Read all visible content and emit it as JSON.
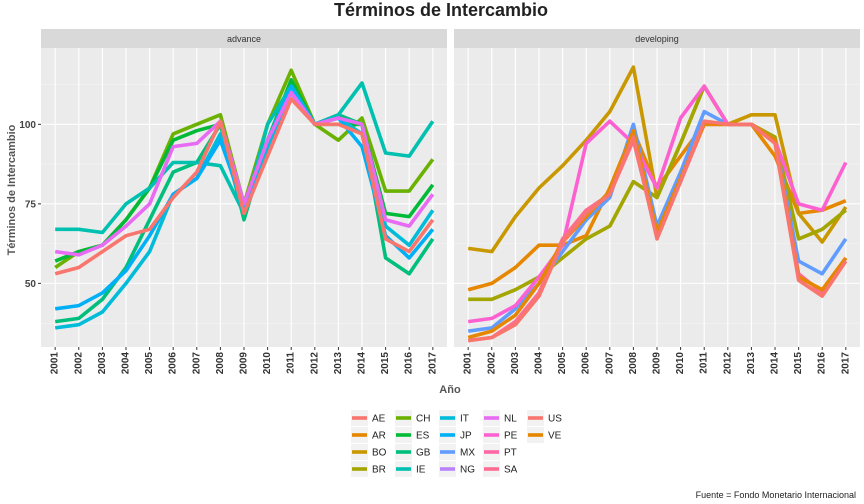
{
  "chart_data": {
    "type": "line",
    "title": "Términos de Intercambio",
    "xlabel": "Año",
    "ylabel": "Términos de Intercambio",
    "caption": "Fuente = Fondo Monetario Internacional",
    "x": [
      2001,
      2002,
      2003,
      2004,
      2005,
      2006,
      2007,
      2008,
      2009,
      2010,
      2011,
      2012,
      2013,
      2014,
      2015,
      2016,
      2017
    ],
    "x_tick_labels": [
      "2001",
      "2002",
      "2003",
      "2004",
      "2005",
      "2006",
      "2007",
      "2008",
      "2009",
      "2010",
      "2011",
      "2012",
      "2013",
      "2014",
      "2015",
      "2016",
      "2017"
    ],
    "ylim": [
      30,
      124
    ],
    "y_ticks": [
      50,
      75,
      100
    ],
    "y_tick_labels": [
      "50",
      "75",
      "100"
    ],
    "grid": true,
    "legend_position": "bottom",
    "legend_columns": [
      [
        "AE",
        "AR",
        "BO",
        "BR"
      ],
      [
        "CH",
        "ES",
        "GB",
        "IE"
      ],
      [
        "IT",
        "JP",
        "MX",
        "NG"
      ],
      [
        "NL",
        "PE",
        "PT",
        "SA"
      ],
      [
        "US",
        "VE"
      ]
    ],
    "colors": {
      "AE": "#F8766D",
      "AR": "#E58700",
      "BO": "#C99800",
      "BR": "#A3A500",
      "CH": "#6BB100",
      "ES": "#00BA38",
      "GB": "#00BF7D",
      "IE": "#00C0AF",
      "IT": "#00BCD8",
      "JP": "#00B0F6",
      "MX": "#619CFF",
      "NG": "#B983FF",
      "NL": "#E76BF3",
      "PE": "#FD61D1",
      "PT": "#FF67A4",
      "SA": "#FF6C91",
      "US": "#F8766D",
      "VE": "#E58700"
    },
    "panels": [
      {
        "label": "advance",
        "series": [
          {
            "name": "CH",
            "values": [
              55,
              60,
              62,
              70,
              80,
              97,
              100,
              103,
              75,
              100,
              117,
              100,
              95,
              102,
              79,
              79,
              89
            ]
          },
          {
            "name": "ES",
            "values": [
              57,
              60,
              62,
              70,
              80,
              95,
              98,
              100,
              72,
              95,
              114,
              100,
              100,
              100,
              72,
              71,
              81
            ]
          },
          {
            "name": "GB",
            "values": [
              38,
              39,
              45,
              55,
              70,
              85,
              88,
              100,
              70,
              95,
              110,
              100,
              103,
              100,
              58,
              53,
              64
            ]
          },
          {
            "name": "IE",
            "values": [
              67,
              67,
              66,
              75,
              80,
              88,
              88,
              87,
              72,
              100,
              112,
              100,
              103,
              113,
              91,
              90,
              101
            ]
          },
          {
            "name": "IT",
            "values": [
              36,
              37,
              41,
              50,
              60,
              78,
              83,
              97,
              72,
              93,
              110,
              100,
              102,
              97,
              68,
              62,
              73
            ]
          },
          {
            "name": "JP",
            "values": [
              42,
              43,
              47,
              54,
              65,
              78,
              83,
              95,
              74,
              95,
              112,
              100,
              102,
              93,
              65,
              58,
              67
            ]
          },
          {
            "name": "NL",
            "values": [
              60,
              59,
              62,
              68,
              75,
              93,
              94,
              101,
              75,
              95,
              110,
              100,
              102,
              100,
              70,
              68,
              78
            ]
          },
          {
            "name": "US",
            "values": [
              53,
              55,
              60,
              65,
              67,
              77,
              85,
              101,
              72,
              90,
              108,
              100,
              100,
              97,
              64,
              60,
              70
            ]
          }
        ]
      },
      {
        "label": "developing",
        "series": [
          {
            "name": "AR",
            "values": [
              48,
              50,
              55,
              62,
              62,
              65,
              80,
              98,
              80,
              90,
              100,
              100,
              100,
              90,
              72,
              73,
              76
            ]
          },
          {
            "name": "BO",
            "values": [
              61,
              60,
              71,
              80,
              87,
              95,
              104,
              118,
              77,
              94,
              112,
              100,
              103,
              103,
              72,
              63,
              74
            ]
          },
          {
            "name": "BR",
            "values": [
              45,
              45,
              48,
              52,
              58,
              64,
              68,
              82,
              77,
              94,
              112,
              100,
              100,
              96,
              64,
              67,
              73
            ]
          },
          {
            "name": "MX",
            "values": [
              35,
              36,
              42,
              50,
              60,
              70,
              77,
              100,
              68,
              85,
              104,
              100,
              100,
              95,
              57,
              53,
              64
            ]
          },
          {
            "name": "PE",
            "values": [
              38,
              39,
              43,
              52,
              62,
              94,
              101,
              94,
              80,
              102,
              112,
              100,
              100,
              95,
              75,
              73,
              88
            ]
          },
          {
            "name": "SA",
            "values": [
              32,
              33,
              38,
              47,
              64,
              73,
              78,
              95,
              65,
              82,
              100,
              100,
              100,
              95,
              53,
              47,
              58
            ]
          },
          {
            "name": "VE",
            "values": [
              33,
              35,
              40,
              50,
              63,
              71,
              79,
              98,
              66,
              83,
              100,
              100,
              100,
              95,
              52,
              48,
              58
            ]
          },
          {
            "name": "AE",
            "values": [
              32,
              33,
              37,
              46,
              63,
              72,
              78,
              96,
              64,
              82,
              101,
              100,
              100,
              94,
              51,
              46,
              57
            ]
          }
        ]
      }
    ]
  }
}
